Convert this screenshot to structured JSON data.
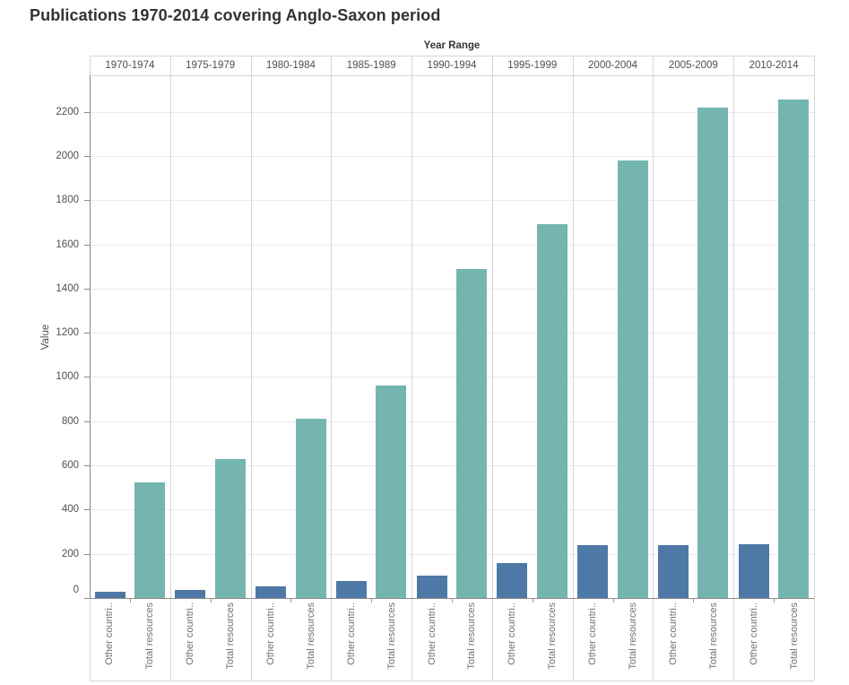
{
  "title": "Publications 1970-2014 covering Anglo-Saxon period",
  "chart_data": {
    "type": "bar",
    "title": "Publications 1970-2014 covering Anglo-Saxon period",
    "column_field_label": "Year Range",
    "categories": [
      "1970-1974",
      "1975-1979",
      "1980-1984",
      "1985-1989",
      "1990-1994",
      "1995-1999",
      "2000-2004",
      "2005-2009",
      "2010-2014"
    ],
    "series": [
      {
        "name": "Other countri..",
        "color": "#4e79a7",
        "values": [
          30,
          38,
          54,
          77,
          100,
          160,
          238,
          240,
          242
        ]
      },
      {
        "name": "Total resources",
        "color": "#75b5b0",
        "values": [
          525,
          627,
          810,
          960,
          1490,
          1692,
          1978,
          2220,
          2255
        ]
      }
    ],
    "ylabel": "Value",
    "yticks": [
      0,
      200,
      400,
      600,
      800,
      1000,
      1200,
      1400,
      1600,
      1800,
      2000,
      2200
    ],
    "ylim": [
      0,
      2365
    ],
    "grid": true,
    "legend": "none",
    "bar_axis_labels": [
      "Other countri..",
      "Total resources"
    ]
  }
}
